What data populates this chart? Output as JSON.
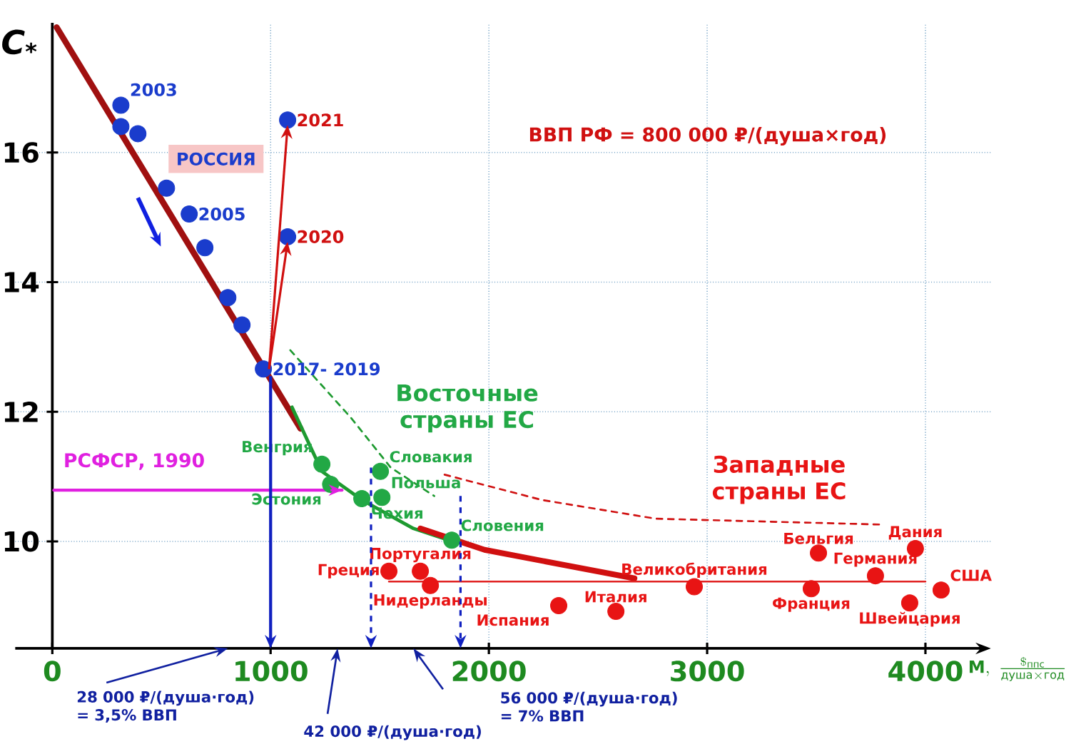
{
  "chart_data": {
    "type": "scatter",
    "ylabel": "C$_{*}$",
    "xlabel": "\\mathbf{M},\\ \\frac{\\$_{\\text{ппс}}}{\\text{душа}\\times\\text{год}}",
    "xlim": [
      -170,
      4300
    ],
    "ylim": [
      8.35,
      18
    ],
    "xticks": [
      0,
      1000,
      2000,
      3000,
      4000
    ],
    "yticks": [
      10,
      12,
      14,
      16
    ],
    "grid": true,
    "marker": "circle",
    "tick_labels": true,
    "series": [
      {
        "name": "РОССИЯ",
        "color": "#1a3ccc",
        "x": [
          314,
          314,
          392,
          523,
          627,
          699,
          804,
          869,
          967,
          1078,
          1078
        ],
        "values": [
          16.73,
          16.4,
          16.29,
          15.45,
          15.05,
          14.53,
          13.76,
          13.34,
          12.66,
          14.7,
          16.5
        ]
      },
      {
        "name": "Восточные страны ЕС",
        "color": "#22a845",
        "x": [
          1235,
          1275,
          1418,
          1503,
          1510,
          1830
        ],
        "values": [
          11.19,
          10.88,
          10.66,
          11.08,
          10.68,
          10.02
        ]
      },
      {
        "name": "Западные страны ЕС",
        "color": "#e81414",
        "x": [
          1542,
          1686,
          1732,
          2320,
          2582,
          2941,
          3510,
          3477,
          3771,
          3954,
          3928,
          4072
        ],
        "values": [
          9.54,
          9.54,
          9.32,
          9.01,
          8.92,
          9.3,
          9.82,
          9.27,
          9.47,
          9.89,
          9.05,
          9.25
        ]
      },
      {
        "type": "line",
        "color": "#a01010",
        "marker": "none",
        "line_style": "solid",
        "x": [
          20,
          1137
        ],
        "values": [
          17.93,
          11.74
        ]
      },
      {
        "type": "line",
        "color": "#1e9a30",
        "marker": "none",
        "line_style": "solid",
        "x": [
          1098,
          1235,
          1418,
          1654,
          1850
        ],
        "values": [
          12.07,
          11.08,
          10.64,
          10.2,
          9.98
        ]
      },
      {
        "type": "line",
        "color": "#1e9a30",
        "marker": "none",
        "line_style": "dashed",
        "x": [
          1090,
          1370,
          1550,
          1750
        ],
        "values": [
          12.95,
          11.9,
          11.14,
          10.7
        ]
      },
      {
        "type": "line",
        "color": "#d01010",
        "marker": "none",
        "line_style": "solid",
        "x": [
          1686,
          1980,
          2667
        ],
        "values": [
          10.2,
          9.87,
          9.43
        ]
      },
      {
        "type": "line",
        "color": "#e02020",
        "marker": "none",
        "line_style": "solid",
        "x": [
          1542,
          4000
        ],
        "values": [
          9.38,
          9.38
        ]
      },
      {
        "type": "line",
        "color": "#d01010",
        "marker": "none",
        "line_style": "dashed",
        "x": [
          1797,
          2242,
          2765,
          3797
        ],
        "values": [
          11.03,
          10.64,
          10.35,
          10.26
        ]
      },
      {
        "type": "line",
        "name": "РСФСР, 1990",
        "color": "#e020e0",
        "marker": "none",
        "line_style": "solid",
        "x": [
          7,
          1327
        ],
        "values": [
          10.79,
          10.79
        ]
      }
    ],
    "annotations": [
      "ВВП РФ = **800 000** ₽/(душа×год)",
      "28 000 ₽/(душа·год) = 3,5% ВВП",
      "42 000 ₽/(душа·год)",
      "56 000 ₽/(душа·год) = 7% ВВП",
      {
        "text": "2003",
        "x": 314,
        "y": 16.73
      },
      {
        "text": "2005",
        "x": 627,
        "y": 15.05
      },
      {
        "text": "2017- 2019",
        "x": 967,
        "y": 12.66
      },
      {
        "text": "2020",
        "x": 1078,
        "y": 14.7
      },
      {
        "text": "2021",
        "x": 1078,
        "y": 16.5
      },
      {
        "text": "Венгрия",
        "x": 1235,
        "y": 11.19
      },
      {
        "text": "Эстония",
        "x": 1275,
        "y": 10.88
      },
      {
        "text": "Чехия",
        "x": 1418,
        "y": 10.66
      },
      {
        "text": "Словакия",
        "x": 1503,
        "y": 11.08
      },
      {
        "text": "Польша",
        "x": 1510,
        "y": 10.68
      },
      {
        "text": "Словения",
        "x": 1830,
        "y": 10.02
      },
      {
        "text": "Греция",
        "x": 1542,
        "y": 9.54
      },
      {
        "text": "Португалия",
        "x": 1686,
        "y": 9.54
      },
      {
        "text": "Нидерланды",
        "x": 1732,
        "y": 9.32
      },
      {
        "text": "Испания",
        "x": 2320,
        "y": 9.01
      },
      {
        "text": "Италия",
        "x": 2582,
        "y": 8.92
      },
      {
        "text": "Великобритания",
        "x": 2941,
        "y": 9.3
      },
      {
        "text": "Бельгия",
        "x": 3510,
        "y": 9.82
      },
      {
        "text": "Франция",
        "x": 3477,
        "y": 9.27
      },
      {
        "text": "Германия",
        "x": 3771,
        "y": 9.47
      },
      {
        "text": "Дания",
        "x": 3954,
        "y": 9.89
      },
      {
        "text": "Швейцария",
        "x": 3928,
        "y": 9.05
      },
      {
        "text": "США",
        "x": 4072,
        "y": 9.25
      }
    ]
  }
}
